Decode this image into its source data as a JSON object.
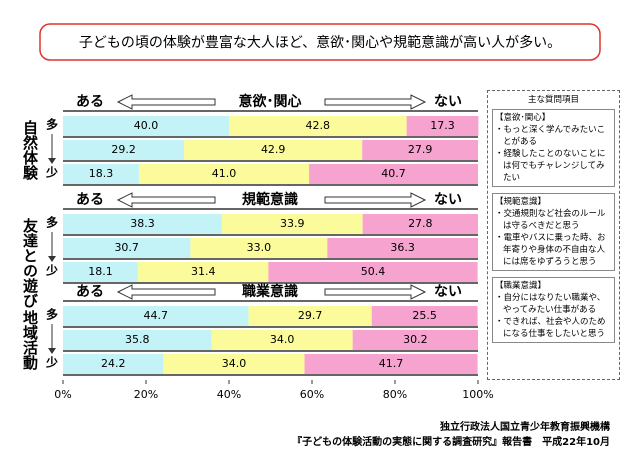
{
  "header": {
    "title": "子どもの頃の体験が豊富な大人ほど、意欲･関心や規範意識が高い人が多い。"
  },
  "chart_data": [
    {
      "type": "bar",
      "orientation": "horizontal",
      "stacked": true,
      "group_label": "自然体験",
      "left_label": "ある",
      "title": "意欲･関心",
      "right_label": "ない",
      "categories": [
        "多",
        null,
        "少"
      ],
      "series": [
        {
          "color": "#c4f3f7",
          "values": [
            40.0,
            29.2,
            18.3
          ],
          "value_labels": [
            "40.0",
            "29.2",
            "18.3"
          ]
        },
        {
          "color": "#fbfb9c",
          "values": [
            42.8,
            42.9,
            41.0
          ],
          "value_labels": [
            "42.8",
            "42.9",
            "41.0"
          ]
        },
        {
          "color": "#f7a3cf",
          "values": [
            17.3,
            27.9,
            40.7
          ],
          "value_labels": [
            "17.3",
            "27.9",
            "40.7"
          ]
        }
      ],
      "xlim": [
        0,
        100
      ]
    },
    {
      "type": "bar",
      "orientation": "horizontal",
      "stacked": true,
      "group_label": "友達との遊び",
      "left_label": "ある",
      "title": "規範意識",
      "right_label": "ない",
      "categories": [
        "多",
        null,
        "少"
      ],
      "series": [
        {
          "color": "#c4f3f7",
          "values": [
            38.3,
            30.7,
            18.1
          ],
          "value_labels": [
            "38.3",
            "30.7",
            "18.1"
          ]
        },
        {
          "color": "#fbfb9c",
          "values": [
            33.9,
            33.0,
            31.4
          ],
          "value_labels": [
            "33.9",
            "33.0",
            "31.4"
          ]
        },
        {
          "color": "#f7a3cf",
          "values": [
            27.8,
            36.3,
            50.4
          ],
          "value_labels": [
            "27.8",
            "36.3",
            "50.4"
          ]
        }
      ],
      "xlim": [
        0,
        100
      ]
    },
    {
      "type": "bar",
      "orientation": "horizontal",
      "stacked": true,
      "group_label": "地域活動",
      "left_label": "ある",
      "title": "職業意識",
      "right_label": "ない",
      "categories": [
        "多",
        null,
        "少"
      ],
      "series": [
        {
          "color": "#c4f3f7",
          "values": [
            44.7,
            35.8,
            24.2
          ],
          "value_labels": [
            "44.7",
            "35.8",
            "24.2"
          ]
        },
        {
          "color": "#fbfb9c",
          "values": [
            29.7,
            34.0,
            34.0
          ],
          "value_labels": [
            "29.7",
            "34.0",
            "34.0"
          ]
        },
        {
          "color": "#f7a3cf",
          "values": [
            25.5,
            30.2,
            41.7
          ],
          "value_labels": [
            "25.5",
            "30.2",
            "41.7"
          ]
        }
      ],
      "xlim": [
        0,
        100
      ],
      "xticks": [
        {
          "value": 0,
          "label": "0%"
        },
        {
          "value": 20,
          "label": "20%"
        },
        {
          "value": 40,
          "label": "40%"
        },
        {
          "value": 60,
          "label": "60%"
        },
        {
          "value": 80,
          "label": "80%"
        },
        {
          "value": 100,
          "label": "100%"
        }
      ]
    }
  ],
  "side_panel": {
    "title": "主な質問項目",
    "sections": [
      {
        "heading": "【意欲･関心】",
        "items": [
          "・もっと深く学んでみたいことがある",
          "・経験したことのないことには何でもチャレンジしてみたい"
        ]
      },
      {
        "heading": "【規範意識】",
        "items": [
          "・交通規則など社会のルールは守るべきだと思う",
          "・電車やバスに乗った時、お年寄りや身体の不自由な人には席をゆずろうと思う"
        ]
      },
      {
        "heading": "【職業意識】",
        "items": [
          "・自分にはなりたい職業や、やってみたい仕事がある",
          "・できれば、社会や人のためになる仕事をしたいと思う"
        ]
      }
    ]
  },
  "footer": {
    "organization": "独立行政法人国立青少年教育振興機構",
    "source": "『子どもの体験活動の実態に関する調査研究』報告書　平成22年10月"
  }
}
